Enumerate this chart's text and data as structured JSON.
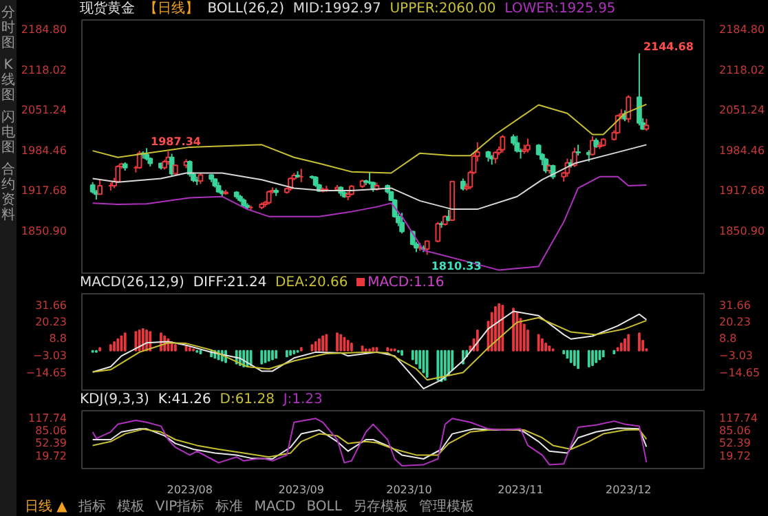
{
  "chart_data": [
    {
      "type": "candlestick",
      "title": "现货黄金",
      "subtitle": "【日线】",
      "legend_title": "BOLL(26,2)",
      "legend": "top",
      "tick_labels": "y",
      "x": [
        "2023-07-05",
        "2023-07-06",
        "2023-07-07",
        "2023-07-10",
        "2023-07-11",
        "2023-07-12",
        "2023-07-13",
        "2023-07-14",
        "2023-07-17",
        "2023-07-18",
        "2023-07-19",
        "2023-07-20",
        "2023-07-21",
        "2023-07-24",
        "2023-07-25",
        "2023-07-26",
        "2023-07-27",
        "2023-07-28",
        "2023-07-31",
        "2023-08-01",
        "2023-08-02",
        "2023-08-03",
        "2023-08-04",
        "2023-08-07",
        "2023-08-08",
        "2023-08-09",
        "2023-08-10",
        "2023-08-11",
        "2023-08-14",
        "2023-08-15",
        "2023-08-16",
        "2023-08-17",
        "2023-08-18",
        "2023-08-21",
        "2023-08-22",
        "2023-08-23",
        "2023-08-24",
        "2023-08-25",
        "2023-08-28",
        "2023-08-29",
        "2023-08-30",
        "2023-08-31",
        "2023-09-01",
        "2023-09-04",
        "2023-09-05",
        "2023-09-06",
        "2023-09-07",
        "2023-09-08",
        "2023-09-11",
        "2023-09-12",
        "2023-09-13",
        "2023-09-14",
        "2023-09-15",
        "2023-09-18",
        "2023-09-19",
        "2023-09-20",
        "2023-09-21",
        "2023-09-22",
        "2023-09-25",
        "2023-09-26",
        "2023-09-27",
        "2023-09-28",
        "2023-09-29",
        "2023-10-02",
        "2023-10-03",
        "2023-10-04",
        "2023-10-05",
        "2023-10-06",
        "2023-10-09",
        "2023-10-10",
        "2023-10-11",
        "2023-10-12",
        "2023-10-13",
        "2023-10-16",
        "2023-10-17",
        "2023-10-18",
        "2023-10-19",
        "2023-10-20",
        "2023-10-23",
        "2023-10-24",
        "2023-10-25",
        "2023-10-26",
        "2023-10-27",
        "2023-10-30",
        "2023-10-31",
        "2023-11-01",
        "2023-11-02",
        "2023-11-03",
        "2023-11-06",
        "2023-11-07",
        "2023-11-08",
        "2023-11-09",
        "2023-11-10",
        "2023-11-13",
        "2023-11-14",
        "2023-11-15",
        "2023-11-16",
        "2023-11-17",
        "2023-11-20",
        "2023-11-21",
        "2023-11-22",
        "2023-11-23",
        "2023-11-24",
        "2023-11-27",
        "2023-11-28",
        "2023-11-29",
        "2023-11-30",
        "2023-12-01",
        "2023-12-04",
        "2023-12-05",
        "2023-12-06"
      ],
      "ohlc": [
        [
          1926,
          1931,
          1912,
          1915
        ],
        [
          1915,
          1918,
          1902,
          1911
        ],
        [
          1911,
          1935,
          1910,
          1925
        ],
        [
          1925,
          1930,
          1917,
          1925
        ],
        [
          1925,
          1938,
          1921,
          1932
        ],
        [
          1932,
          1959,
          1930,
          1957
        ],
        [
          1957,
          1963,
          1953,
          1961
        ],
        [
          1961,
          1964,
          1950,
          1955
        ],
        [
          1955,
          1958,
          1947,
          1955
        ],
        [
          1955,
          1983,
          1953,
          1979
        ],
        [
          1979,
          1982,
          1970,
          1977
        ],
        [
          1977,
          1987.34,
          1967,
          1970
        ],
        [
          1970,
          1972,
          1957,
          1962
        ],
        [
          1962,
          1963,
          1952,
          1955
        ],
        [
          1955,
          1968,
          1952,
          1965
        ],
        [
          1965,
          1982,
          1960,
          1972
        ],
        [
          1972,
          1978,
          1942,
          1945
        ],
        [
          1945,
          1960,
          1944,
          1959
        ],
        [
          1959,
          1969,
          1954,
          1965
        ],
        [
          1965,
          1967,
          1940,
          1944
        ],
        [
          1944,
          1947,
          1931,
          1934
        ],
        [
          1934,
          1940,
          1926,
          1933
        ],
        [
          1933,
          1946,
          1928,
          1943
        ],
        [
          1943,
          1944,
          1931,
          1936
        ],
        [
          1936,
          1937,
          1922,
          1925
        ],
        [
          1925,
          1931,
          1913,
          1915
        ],
        [
          1915,
          1918,
          1907,
          1912
        ],
        [
          1912,
          1918,
          1910,
          1914
        ],
        [
          1914,
          1916,
          1903,
          1907
        ],
        [
          1907,
          1910,
          1898,
          1901
        ],
        [
          1901,
          1904,
          1890,
          1892
        ],
        [
          1892,
          1896,
          1885,
          1889
        ],
        [
          1889,
          1892,
          1884,
          1889
        ],
        [
          1889,
          1897,
          1886,
          1894
        ],
        [
          1894,
          1900,
          1890,
          1897
        ],
        [
          1897,
          1917,
          1894,
          1915
        ],
        [
          1915,
          1922,
          1912,
          1917
        ],
        [
          1917,
          1921,
          1908,
          1914
        ],
        [
          1914,
          1922,
          1912,
          1920
        ],
        [
          1920,
          1939,
          1917,
          1937
        ],
        [
          1937,
          1946,
          1934,
          1942
        ],
        [
          1942,
          1949,
          1938,
          1940
        ],
        [
          1940,
          1953,
          1931,
          1940
        ],
        [
          1940,
          1942,
          1936,
          1939
        ],
        [
          1939,
          1941,
          1923,
          1926
        ],
        [
          1926,
          1928,
          1915,
          1916
        ],
        [
          1916,
          1922,
          1914,
          1919
        ],
        [
          1919,
          1925,
          1915,
          1919
        ],
        [
          1919,
          1926,
          1916,
          1922
        ],
        [
          1922,
          1924,
          1908,
          1913
        ],
        [
          1913,
          1918,
          1905,
          1907
        ],
        [
          1907,
          1915,
          1901,
          1911
        ],
        [
          1911,
          1926,
          1909,
          1924
        ],
        [
          1924,
          1935,
          1921,
          1933
        ],
        [
          1933,
          1935,
          1926,
          1931
        ],
        [
          1931,
          1947,
          1927,
          1930
        ],
        [
          1930,
          1932,
          1915,
          1919
        ],
        [
          1919,
          1930,
          1917,
          1925
        ],
        [
          1925,
          1927,
          1912,
          1915
        ],
        [
          1915,
          1916,
          1900,
          1901
        ],
        [
          1901,
          1903,
          1872,
          1874
        ],
        [
          1874,
          1879,
          1858,
          1864
        ],
        [
          1864,
          1880,
          1846,
          1849
        ],
        [
          1849,
          1850,
          1826,
          1828
        ],
        [
          1828,
          1832,
          1815,
          1822
        ],
        [
          1822,
          1830,
          1817,
          1822
        ],
        [
          1822,
          1826,
          1815,
          1820
        ],
        [
          1820,
          1834,
          1810.33,
          1833
        ],
        [
          1833,
          1865,
          1831,
          1862
        ],
        [
          1862,
          1866,
          1855,
          1861
        ],
        [
          1861,
          1876,
          1859,
          1874
        ],
        [
          1874,
          1885,
          1866,
          1868
        ],
        [
          1868,
          1933,
          1867,
          1932
        ],
        [
          1932,
          1937,
          1917,
          1920
        ],
        [
          1920,
          1929,
          1917,
          1923
        ],
        [
          1923,
          1950,
          1919,
          1947
        ],
        [
          1947,
          1979,
          1944,
          1974
        ],
        [
          1974,
          1997,
          1965,
          1981
        ],
        [
          1981,
          1983,
          1965,
          1973
        ],
        [
          1973,
          1976,
          1960,
          1970
        ],
        [
          1970,
          1982,
          1962,
          1980
        ],
        [
          1980,
          1990,
          1976,
          1985
        ],
        [
          1985,
          2009,
          1980,
          2006
        ],
        [
          2006,
          2010,
          1992,
          1996
        ],
        [
          1996,
          2008,
          1980,
          1983
        ],
        [
          1983,
          1987,
          1970,
          1982
        ],
        [
          1982,
          1993,
          1978,
          1985
        ],
        [
          1985,
          2003,
          1980,
          1992
        ],
        [
          1992,
          1994,
          1975,
          1977
        ],
        [
          1977,
          1979,
          1959,
          1969
        ],
        [
          1969,
          1971,
          1946,
          1950
        ],
        [
          1950,
          1961,
          1945,
          1958
        ],
        [
          1958,
          1960,
          1936,
          1940
        ],
        [
          1940,
          1948,
          1932,
          1946
        ],
        [
          1946,
          1970,
          1940,
          1963
        ],
        [
          1963,
          1969,
          1955,
          1959
        ],
        [
          1959,
          1988,
          1956,
          1981
        ],
        [
          1981,
          1993,
          1975,
          1980
        ],
        [
          1980,
          1984,
          1965,
          1977
        ],
        [
          1977,
          2007,
          1975,
          2000
        ],
        [
          2000,
          2004,
          1988,
          1990
        ],
        [
          1990,
          1998,
          1986,
          1992
        ],
        [
          1992,
          2004,
          1990,
          2002
        ],
        [
          2002,
          2017,
          2000,
          2013
        ],
        [
          2013,
          2043,
          2011,
          2041
        ],
        [
          2041,
          2052,
          2035,
          2044
        ],
        [
          2044,
          2050,
          2032,
          2036
        ],
        [
          2036,
          2075,
          2030,
          2072
        ],
        [
          2072,
          2144.68,
          2025,
          2029
        ],
        [
          2029,
          2037,
          2018,
          2019
        ],
        [
          2019,
          2036,
          2016,
          2025
        ]
      ],
      "series": [
        {
          "name": "MID:1992.97",
          "type": "line",
          "color": "#d8d8d8",
          "x": [
            "2023-07-05",
            "2023-07-12",
            "2023-07-24",
            "2023-07-31",
            "2023-08-10",
            "2023-08-21",
            "2023-08-30",
            "2023-09-07",
            "2023-09-15",
            "2023-09-26",
            "2023-10-04",
            "2023-10-13",
            "2023-10-20",
            "2023-10-31",
            "2023-11-07",
            "2023-11-16",
            "2023-11-27",
            "2023-12-06"
          ],
          "values": [
            1937,
            1931,
            1937,
            1946,
            1946,
            1935,
            1921,
            1917,
            1917,
            1921,
            1900,
            1886,
            1886,
            1907,
            1935,
            1962,
            1979,
            1992.97
          ]
        },
        {
          "name": "UPPER:2060.00",
          "type": "line",
          "color": "#c8c032",
          "x": [
            "2023-07-05",
            "2023-07-12",
            "2023-07-20",
            "2023-08-01",
            "2023-08-21",
            "2023-08-30",
            "2023-09-06",
            "2023-09-15",
            "2023-09-26",
            "2023-10-04",
            "2023-10-13",
            "2023-10-18",
            "2023-10-25",
            "2023-11-06",
            "2023-11-14",
            "2023-11-21",
            "2023-11-24",
            "2023-11-30",
            "2023-12-06"
          ],
          "values": [
            1983,
            1972,
            1979,
            1989,
            1993,
            1972,
            1962,
            1948,
            1946,
            1979,
            1975,
            1975,
            2010,
            2059,
            2045,
            2010,
            2010,
            2045,
            2060.0
          ]
        },
        {
          "name": "LOWER:1925.95",
          "type": "line",
          "color": "#b030c0",
          "x": [
            "2023-07-05",
            "2023-07-12",
            "2023-07-20",
            "2023-08-01",
            "2023-08-10",
            "2023-08-17",
            "2023-08-23",
            "2023-09-06",
            "2023-09-15",
            "2023-09-22",
            "2023-09-26",
            "2023-09-29",
            "2023-10-05",
            "2023-10-16",
            "2023-10-26",
            "2023-11-06",
            "2023-11-13",
            "2023-11-17",
            "2023-11-23",
            "2023-11-28",
            "2023-12-01",
            "2023-12-06"
          ],
          "values": [
            1896,
            1894,
            1895,
            1905,
            1907,
            1886,
            1874,
            1874,
            1882,
            1890,
            1896,
            1874,
            1818,
            1801,
            1785,
            1791,
            1865,
            1921,
            1940,
            1940,
            1925,
            1925.95
          ]
        }
      ],
      "xlim": [
        "2023-07-02",
        "2023-12-22"
      ],
      "ylim": [
        1780,
        2200
      ],
      "yticks": [
        {
          "value": 2184.8,
          "label": "2184.80"
        },
        {
          "value": 2118.02,
          "label": "2118.02"
        },
        {
          "value": 2051.24,
          "label": "2051.24"
        },
        {
          "value": 1984.46,
          "label": "1984.46"
        },
        {
          "value": 1917.68,
          "label": "1917.68"
        },
        {
          "value": 1850.9,
          "label": "1850.90"
        }
      ],
      "y2lim": [
        1780,
        2200
      ],
      "y2ticks": [
        {
          "value": 2184.8,
          "label": "2184.80"
        },
        {
          "value": 2118.02,
          "label": "2118.02"
        },
        {
          "value": 2051.24,
          "label": "2051.24"
        },
        {
          "value": 1984.46,
          "label": "1984.46"
        },
        {
          "value": 1917.68,
          "label": "1917.68"
        },
        {
          "value": 1850.9,
          "label": "1850.90"
        }
      ],
      "annotations": [
        "分时图",
        "K线图",
        "闪电图",
        "合约资料",
        {
          "text": "1987.34",
          "x": "2023-07-20",
          "y": 1987.34
        },
        {
          "text": "2144.68",
          "x": "2023-12-04",
          "y": 2144.68
        },
        {
          "text": "1810.33",
          "x": "2023-10-06",
          "y": 1810.33
        }
      ]
    },
    {
      "type": "line",
      "legend_title": "MACD(26,12,9)",
      "legend": "top left",
      "tick_labels": "y",
      "x": [
        "2023-07-05",
        "2023-07-06",
        "2023-07-07",
        "2023-07-10",
        "2023-07-11",
        "2023-07-12",
        "2023-07-13",
        "2023-07-14",
        "2023-07-17",
        "2023-07-18",
        "2023-07-19",
        "2023-07-20",
        "2023-07-21",
        "2023-07-24",
        "2023-07-25",
        "2023-07-26",
        "2023-07-27",
        "2023-07-28",
        "2023-07-31",
        "2023-08-01",
        "2023-08-02",
        "2023-08-03",
        "2023-08-04",
        "2023-08-07",
        "2023-08-08",
        "2023-08-09",
        "2023-08-10",
        "2023-08-11",
        "2023-08-14",
        "2023-08-15",
        "2023-08-16",
        "2023-08-17",
        "2023-08-18",
        "2023-08-21",
        "2023-08-22",
        "2023-08-23",
        "2023-08-24",
        "2023-08-25",
        "2023-08-28",
        "2023-08-29",
        "2023-08-30",
        "2023-08-31",
        "2023-09-01",
        "2023-09-04",
        "2023-09-05",
        "2023-09-06",
        "2023-09-07",
        "2023-09-08",
        "2023-09-11",
        "2023-09-12",
        "2023-09-13",
        "2023-09-14",
        "2023-09-15",
        "2023-09-18",
        "2023-09-19",
        "2023-09-20",
        "2023-09-21",
        "2023-09-22",
        "2023-09-25",
        "2023-09-26",
        "2023-09-27",
        "2023-09-28",
        "2023-09-29",
        "2023-10-02",
        "2023-10-03",
        "2023-10-04",
        "2023-10-05",
        "2023-10-06",
        "2023-10-09",
        "2023-10-10",
        "2023-10-11",
        "2023-10-12",
        "2023-10-13",
        "2023-10-16",
        "2023-10-17",
        "2023-10-18",
        "2023-10-19",
        "2023-10-20",
        "2023-10-23",
        "2023-10-24",
        "2023-10-25",
        "2023-10-26",
        "2023-10-27",
        "2023-10-30",
        "2023-10-31",
        "2023-11-01",
        "2023-11-02",
        "2023-11-03",
        "2023-11-06",
        "2023-11-07",
        "2023-11-08",
        "2023-11-09",
        "2023-11-10",
        "2023-11-13",
        "2023-11-14",
        "2023-11-15",
        "2023-11-16",
        "2023-11-17",
        "2023-11-20",
        "2023-11-21",
        "2023-11-22",
        "2023-11-23",
        "2023-11-24",
        "2023-11-27",
        "2023-11-28",
        "2023-11-29",
        "2023-11-30",
        "2023-12-01",
        "2023-12-04",
        "2023-12-05",
        "2023-12-06"
      ],
      "series": [
        {
          "name": "DIFF:21.24",
          "type": "line",
          "color": "#e8e8e8",
          "x": [
            "2023-07-05",
            "2023-07-10",
            "2023-07-13",
            "2023-07-20",
            "2023-07-26",
            "2023-07-31",
            "2023-08-07",
            "2023-08-15",
            "2023-08-21",
            "2023-08-24",
            "2023-08-30",
            "2023-09-05",
            "2023-09-12",
            "2023-09-14",
            "2023-09-22",
            "2023-09-27",
            "2023-10-05",
            "2023-10-10",
            "2023-10-16",
            "2023-10-23",
            "2023-10-30",
            "2023-11-06",
            "2023-11-13",
            "2023-11-15",
            "2023-11-21",
            "2023-11-28",
            "2023-12-04",
            "2023-12-06"
          ],
          "values": [
            -14.65,
            -11,
            -3.6,
            5.4,
            6.2,
            3.8,
            -1.1,
            -5.2,
            -14,
            -14,
            -5,
            -1,
            -1.5,
            -3.6,
            -1,
            -3.6,
            -26,
            -20,
            -6.9,
            15,
            27,
            24,
            11,
            8,
            10,
            17,
            25,
            21.24
          ]
        },
        {
          "name": "DEA:20.66",
          "type": "line",
          "color": "#c8c032",
          "x": [
            "2023-07-05",
            "2023-07-10",
            "2023-07-18",
            "2023-07-26",
            "2023-07-31",
            "2023-08-07",
            "2023-08-17",
            "2023-08-23",
            "2023-08-30",
            "2023-09-08",
            "2023-09-20",
            "2023-09-25",
            "2023-10-03",
            "2023-10-06",
            "2023-10-16",
            "2023-10-23",
            "2023-10-31",
            "2023-11-06",
            "2023-11-15",
            "2023-11-22",
            "2023-11-30",
            "2023-12-06"
          ],
          "values": [
            -14.65,
            -13,
            -1,
            5.4,
            5,
            0.5,
            -11,
            -12.5,
            -7,
            -2,
            -1,
            -1.5,
            -12.5,
            -20,
            -15,
            2,
            19.4,
            22.6,
            12.8,
            11,
            15,
            20.66
          ]
        },
        {
          "name": "MACD:1.16",
          "type": "bar",
          "color": "#cc44cc",
          "values": [
            -1,
            -1,
            2,
            4,
            6,
            8,
            10,
            12,
            13,
            14,
            15,
            14,
            13,
            12,
            10,
            8,
            6,
            4,
            3,
            2,
            1,
            -1,
            -2,
            -4,
            -5,
            -6,
            -7,
            -8,
            -9,
            -10,
            -11,
            -11,
            -10,
            -9,
            -8,
            -7,
            -6,
            -5,
            -4,
            -3,
            -2,
            -1,
            2,
            4,
            6,
            8,
            10,
            11,
            12,
            11,
            9,
            7,
            5,
            3,
            1,
            1,
            2,
            2,
            2,
            1,
            1,
            -1,
            -3,
            -6,
            -9,
            -12,
            -15,
            -18,
            -20,
            -21,
            -20,
            -17,
            -13,
            -9,
            -4,
            3,
            8,
            14,
            20,
            26,
            30,
            32,
            31,
            29,
            26,
            22,
            18,
            14,
            11,
            8,
            5,
            3,
            1,
            -2,
            -5,
            -8,
            -10,
            -12,
            -11,
            -10,
            -8,
            -6,
            -4,
            -2,
            2,
            5,
            8,
            11,
            12,
            7,
            1.16
          ],
          "colors": [
            "#3ad39a",
            "#3ad39a",
            "#e8383d",
            "#e8383d",
            "#e8383d",
            "#e8383d",
            "#e8383d",
            "#e8383d",
            "#e8383d",
            "#e8383d",
            "#e8383d",
            "#e8383d",
            "#e8383d",
            "#e8383d",
            "#e8383d",
            "#e8383d",
            "#e8383d",
            "#e8383d",
            "#e8383d",
            "#e8383d",
            "#e8383d",
            "#3ad39a",
            "#3ad39a",
            "#3ad39a",
            "#3ad39a",
            "#3ad39a",
            "#3ad39a",
            "#3ad39a",
            "#3ad39a",
            "#3ad39a",
            "#3ad39a",
            "#3ad39a",
            "#3ad39a",
            "#3ad39a",
            "#3ad39a",
            "#3ad39a",
            "#3ad39a",
            "#3ad39a",
            "#3ad39a",
            "#3ad39a",
            "#3ad39a",
            "#3ad39a",
            "#e8383d",
            "#e8383d",
            "#e8383d",
            "#e8383d",
            "#e8383d",
            "#e8383d",
            "#e8383d",
            "#e8383d",
            "#e8383d",
            "#e8383d",
            "#e8383d",
            "#e8383d",
            "#e8383d",
            "#e8383d",
            "#e8383d",
            "#e8383d",
            "#e8383d",
            "#e8383d",
            "#e8383d",
            "#3ad39a",
            "#3ad39a",
            "#3ad39a",
            "#3ad39a",
            "#3ad39a",
            "#3ad39a",
            "#3ad39a",
            "#3ad39a",
            "#3ad39a",
            "#3ad39a",
            "#3ad39a",
            "#3ad39a",
            "#3ad39a",
            "#3ad39a",
            "#e8383d",
            "#e8383d",
            "#e8383d",
            "#e8383d",
            "#e8383d",
            "#e8383d",
            "#e8383d",
            "#e8383d",
            "#e8383d",
            "#e8383d",
            "#e8383d",
            "#e8383d",
            "#e8383d",
            "#e8383d",
            "#e8383d",
            "#e8383d",
            "#e8383d",
            "#e8383d",
            "#3ad39a",
            "#3ad39a",
            "#3ad39a",
            "#3ad39a",
            "#3ad39a",
            "#3ad39a",
            "#3ad39a",
            "#3ad39a",
            "#3ad39a",
            "#3ad39a",
            "#3ad39a",
            "#e8383d",
            "#e8383d",
            "#e8383d",
            "#e8383d",
            "#e8383d",
            "#e8383d",
            "#e8383d"
          ]
        }
      ],
      "xlim": [
        "2023-07-02",
        "2023-12-22"
      ],
      "ylim": [
        -27,
        39
      ],
      "yticks": [
        31.66,
        20.23,
        8.8,
        -3.03,
        -14.65
      ],
      "y2lim": [
        -27,
        39
      ],
      "y2ticks": [
        31.66,
        20.23,
        8.8,
        -3.03,
        -14.65
      ]
    },
    {
      "type": "line",
      "legend_title": "KDJ(9,3,3)",
      "legend": "top left",
      "series": [
        {
          "name": "K:41.26",
          "color": "#e8e8e8",
          "x": [
            "2023-07-05",
            "2023-07-10",
            "2023-07-13",
            "2023-07-18",
            "2023-07-20",
            "2023-07-25",
            "2023-07-28",
            "2023-08-02",
            "2023-08-08",
            "2023-08-14",
            "2023-08-18",
            "2023-08-24",
            "2023-08-29",
            "2023-09-01",
            "2023-09-06",
            "2023-09-11",
            "2023-09-14",
            "2023-09-19",
            "2023-09-21",
            "2023-09-26",
            "2023-09-29",
            "2023-10-05",
            "2023-10-10",
            "2023-10-13",
            "2023-10-19",
            "2023-10-25",
            "2023-10-31",
            "2023-11-02",
            "2023-11-06",
            "2023-11-09",
            "2023-11-14",
            "2023-11-17",
            "2023-11-22",
            "2023-11-28",
            "2023-12-04",
            "2023-12-06"
          ],
          "values": [
            60,
            60,
            80,
            88,
            88,
            70,
            50,
            35,
            25,
            20,
            12,
            10,
            40,
            75,
            85,
            55,
            30,
            60,
            60,
            40,
            20,
            10,
            35,
            75,
            88,
            85,
            86,
            80,
            55,
            30,
            25,
            65,
            80,
            90,
            88,
            41.26
          ]
        },
        {
          "name": "D:61.28",
          "color": "#c8c032",
          "x": [
            "2023-07-05",
            "2023-07-10",
            "2023-07-14",
            "2023-07-19",
            "2023-07-24",
            "2023-07-28",
            "2023-08-03",
            "2023-08-09",
            "2023-08-16",
            "2023-08-23",
            "2023-08-29",
            "2023-09-01",
            "2023-09-06",
            "2023-09-11",
            "2023-09-14",
            "2023-09-19",
            "2023-09-22",
            "2023-09-27",
            "2023-10-03",
            "2023-10-09",
            "2023-10-12",
            "2023-10-18",
            "2023-10-24",
            "2023-10-31",
            "2023-11-02",
            "2023-11-07",
            "2023-11-10",
            "2023-11-15",
            "2023-11-20",
            "2023-11-24",
            "2023-11-30",
            "2023-12-04",
            "2023-12-06"
          ],
          "values": [
            45,
            55,
            75,
            87,
            80,
            60,
            45,
            35,
            25,
            15,
            25,
            55,
            75,
            70,
            50,
            55,
            52,
            35,
            20,
            20,
            50,
            80,
            86,
            86,
            85,
            65,
            45,
            35,
            55,
            75,
            85,
            86,
            61.28
          ]
        },
        {
          "name": "J:1.23",
          "color": "#b030c0",
          "x": [
            "2023-07-05",
            "2023-07-06",
            "2023-07-10",
            "2023-07-12",
            "2023-07-17",
            "2023-07-20",
            "2023-07-24",
            "2023-07-26",
            "2023-07-28",
            "2023-08-01",
            "2023-08-03",
            "2023-08-07",
            "2023-08-09",
            "2023-08-14",
            "2023-08-16",
            "2023-08-21",
            "2023-08-24",
            "2023-08-28",
            "2023-08-30",
            "2023-09-05",
            "2023-09-07",
            "2023-09-11",
            "2023-09-13",
            "2023-09-15",
            "2023-09-19",
            "2023-09-21",
            "2023-09-25",
            "2023-09-27",
            "2023-09-29",
            "2023-10-05",
            "2023-10-09",
            "2023-10-11",
            "2023-10-13",
            "2023-10-18",
            "2023-10-23",
            "2023-10-27",
            "2023-11-01",
            "2023-11-03",
            "2023-11-07",
            "2023-11-09",
            "2023-11-13",
            "2023-11-15",
            "2023-11-17",
            "2023-11-22",
            "2023-11-27",
            "2023-11-30",
            "2023-12-04",
            "2023-12-06"
          ],
          "values": [
            80,
            63,
            80,
            100,
            110,
            105,
            95,
            60,
            40,
            20,
            30,
            10,
            0,
            15,
            5,
            12,
            5,
            20,
            105,
            115,
            105,
            60,
            0,
            5,
            80,
            100,
            60,
            10,
            -8,
            -5,
            10,
            100,
            115,
            105,
            88,
            85,
            88,
            45,
            20,
            -5,
            -3,
            45,
            92,
            98,
            108,
            100,
            95,
            1.23
          ]
        }
      ],
      "xlim": [
        "2023-07-02",
        "2023-12-22"
      ],
      "ylim": [
        -15,
        135
      ],
      "xticks": [
        {
          "value": "2023-08-01",
          "label": "2023/08"
        },
        {
          "value": "2023-09-01",
          "label": "2023/09"
        },
        {
          "value": "2023-10-01",
          "label": "2023/10"
        },
        {
          "value": "2023-11-01",
          "label": "2023/11"
        },
        {
          "value": "2023-12-01",
          "label": "2023/12"
        }
      ],
      "yticks": [
        117.74,
        85.06,
        52.39,
        19.72
      ],
      "y2lim": [
        -15,
        135
      ],
      "y2ticks": [
        117.74,
        85.06,
        52.39,
        19.72
      ],
      "annotations": [
        "日线 ▲",
        "指标",
        "模板",
        "VIP指标",
        "标准",
        "MACD",
        "BOLL",
        "另存模板",
        "管理模板"
      ]
    }
  ]
}
